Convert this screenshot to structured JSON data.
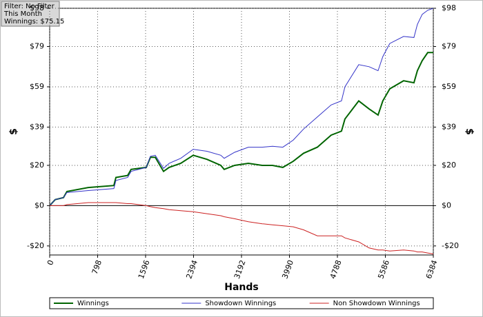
{
  "chart_data": {
    "type": "line",
    "x_label": "Hands",
    "y_label": "$",
    "y2_label": "$",
    "annotations": [
      "Filter: No Filter",
      "This Month",
      "Winnings: $75.15"
    ],
    "x": [
      0,
      92,
      230,
      287,
      643,
      1068,
      1102,
      1297,
      1355,
      1607,
      1676,
      1757,
      1895,
      1987,
      2182,
      2388,
      2617,
      2847,
      2904,
      3077,
      3306,
      3536,
      3708,
      3880,
      4052,
      4224,
      4454,
      4684,
      4856,
      4913,
      5143,
      5315,
      5464,
      5544,
      5659,
      5889,
      6061,
      6119,
      6199,
      6291,
      6384
    ],
    "series": [
      {
        "name": "Winnings",
        "color": "#006400",
        "width": 2,
        "values": [
          0,
          3,
          4,
          7,
          9,
          10,
          14,
          15,
          18,
          19,
          24,
          24,
          17,
          19,
          21,
          25,
          23,
          20,
          18,
          20,
          21,
          20,
          20,
          19,
          22,
          26,
          29,
          35,
          37,
          43,
          52,
          48,
          45,
          52,
          58,
          62,
          61,
          67,
          72,
          76,
          76
        ]
      },
      {
        "name": "Showdown Winnings",
        "color": "#3232c8",
        "width": 1,
        "values": [
          0,
          3,
          4,
          6.5,
          7.5,
          8.5,
          12.5,
          14,
          17,
          19,
          24.5,
          25,
          18.5,
          21,
          23.5,
          28,
          27,
          25,
          23.5,
          26.5,
          29,
          29,
          29.5,
          29,
          32.5,
          38,
          44,
          50,
          52,
          59,
          70,
          69,
          67,
          74,
          80.5,
          84,
          83.5,
          90,
          95,
          97,
          98
        ]
      },
      {
        "name": "Non Showdown Winnings",
        "color": "#cc2020",
        "width": 1,
        "values": [
          0,
          0,
          0,
          0.5,
          1.5,
          1.5,
          1.5,
          1,
          1,
          0,
          -0.5,
          -1,
          -1.5,
          -2,
          -2.5,
          -3,
          -4,
          -5,
          -5.5,
          -6.5,
          -8,
          -9,
          -9.5,
          -10,
          -10.5,
          -12,
          -15,
          -15,
          -15,
          -16,
          -18,
          -21,
          -22,
          -22,
          -22.5,
          -22,
          -22.5,
          -23,
          -23,
          -23.5,
          -24
        ]
      }
    ],
    "xlim": [
      0,
      6384
    ],
    "xticks": [
      0,
      798,
      1596,
      2394,
      3192,
      3990,
      4788,
      5586,
      6384
    ],
    "ylim": [
      -24.5,
      98
    ],
    "yticks": [
      {
        "value": -20,
        "label": "-$20"
      },
      {
        "value": 0,
        "label": "$0"
      },
      {
        "value": 20,
        "label": "$20"
      },
      {
        "value": 39,
        "label": "$39"
      },
      {
        "value": 59,
        "label": "$59"
      },
      {
        "value": 79,
        "label": "$79"
      },
      {
        "value": 98,
        "label": "$98"
      }
    ],
    "grid": true,
    "legend": "bottom"
  }
}
